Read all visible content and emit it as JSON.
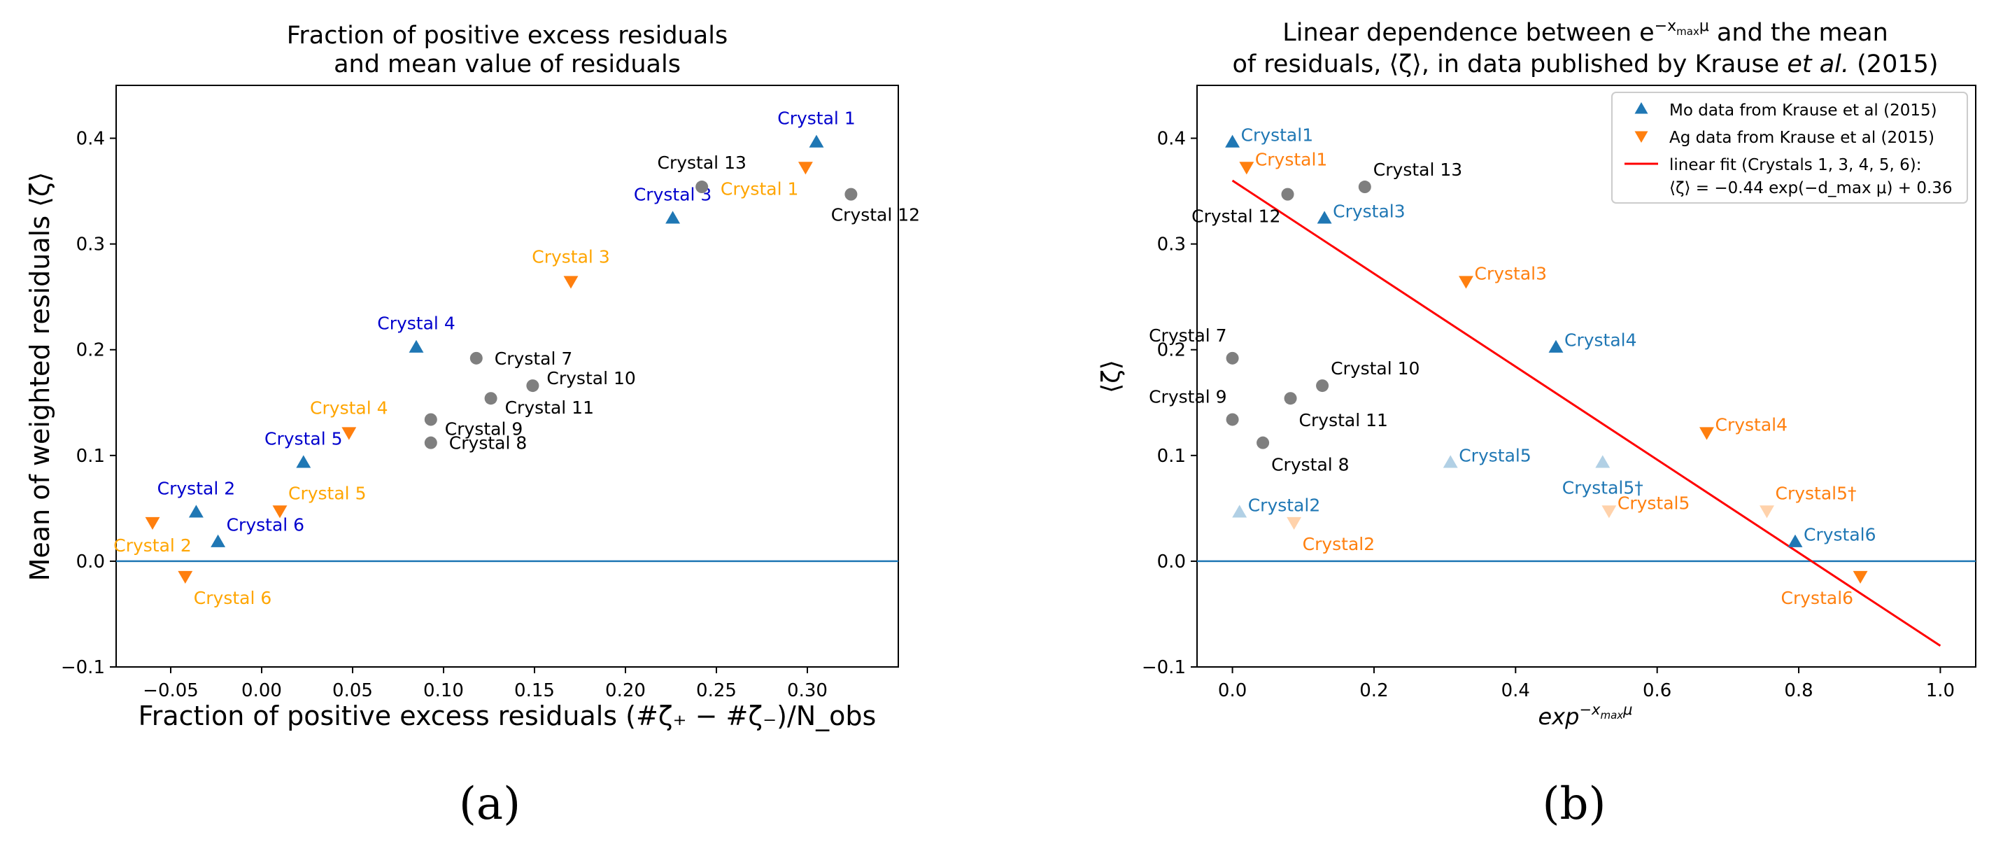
{
  "colors": {
    "mo": "#1f77b4",
    "ag": "#ff7f0e",
    "ag_label": "#ffa500",
    "mo_label_a": "#0000cd",
    "grey": "#7f7f7f",
    "fit": "#ff0000",
    "zero_line": "#1f77b4"
  },
  "chart_data": [
    {
      "type": "scatter",
      "panel_label": "(a)",
      "title_lines": [
        "Fraction of positive excess residuals",
        "and mean value of residuals"
      ],
      "xlabel": "Fraction of positive excess residuals (#ζ₊ − #ζ₋)/N_obs",
      "ylabel": "Mean of weighted residuals ⟨ζ⟩",
      "xlim": [
        -0.08,
        0.35
      ],
      "ylim": [
        -0.1,
        0.45
      ],
      "xticks": [
        -0.05,
        0.0,
        0.05,
        0.1,
        0.15,
        0.2,
        0.25,
        0.3
      ],
      "xtick_labels": [
        "−0.05",
        "0.00",
        "0.05",
        "0.10",
        "0.15",
        "0.20",
        "0.25",
        "0.30"
      ],
      "yticks": [
        -0.1,
        0.0,
        0.1,
        0.2,
        0.3,
        0.4
      ],
      "ytick_labels": [
        "−0.1",
        "0.0",
        "0.1",
        "0.2",
        "0.3",
        "0.4"
      ],
      "hline_y": 0.0,
      "points": [
        {
          "x": 0.305,
          "y": 0.396,
          "series": "mo",
          "label": "Crystal 1",
          "lpos": "above"
        },
        {
          "x": -0.036,
          "y": 0.046,
          "series": "mo",
          "label": "Crystal 2",
          "lpos": "above"
        },
        {
          "x": 0.226,
          "y": 0.324,
          "series": "mo",
          "label": "Crystal 3",
          "lpos": "above"
        },
        {
          "x": 0.085,
          "y": 0.202,
          "series": "mo",
          "label": "Crystal 4",
          "lpos": "above"
        },
        {
          "x": 0.023,
          "y": 0.093,
          "series": "mo",
          "label": "Crystal 5",
          "lpos": "above"
        },
        {
          "x": -0.024,
          "y": 0.018,
          "series": "mo",
          "label": "Crystal 6",
          "lpos": "above-right"
        },
        {
          "x": 0.299,
          "y": 0.373,
          "series": "ag",
          "label": "Crystal 1",
          "lpos": "below-left"
        },
        {
          "x": -0.06,
          "y": 0.037,
          "series": "ag",
          "label": "Crystal 2",
          "lpos": "below"
        },
        {
          "x": 0.17,
          "y": 0.265,
          "series": "ag",
          "label": "Crystal 3",
          "lpos": "above"
        },
        {
          "x": 0.048,
          "y": 0.122,
          "series": "ag",
          "label": "Crystal 4",
          "lpos": "above"
        },
        {
          "x": 0.01,
          "y": 0.048,
          "series": "ag",
          "label": "Crystal 5",
          "lpos": "above-right"
        },
        {
          "x": -0.042,
          "y": -0.014,
          "series": "ag",
          "label": "Crystal 6",
          "lpos": "below-right"
        },
        {
          "x": 0.118,
          "y": 0.192,
          "series": "grey",
          "label": "Crystal 7",
          "lpos": "right"
        },
        {
          "x": 0.093,
          "y": 0.112,
          "series": "grey",
          "label": "Crystal 8",
          "lpos": "right"
        },
        {
          "x": 0.093,
          "y": 0.134,
          "series": "grey",
          "label": "Crystal 9",
          "lpos": "right-below"
        },
        {
          "x": 0.149,
          "y": 0.166,
          "series": "grey",
          "label": "Crystal 10",
          "lpos": "right-above"
        },
        {
          "x": 0.126,
          "y": 0.154,
          "series": "grey",
          "label": "Crystal 11",
          "lpos": "right-below"
        },
        {
          "x": 0.324,
          "y": 0.347,
          "series": "grey",
          "label": "Crystal 12",
          "lpos": "below-center"
        },
        {
          "x": 0.242,
          "y": 0.354,
          "series": "grey",
          "label": "Crystal 13",
          "lpos": "above"
        }
      ]
    },
    {
      "type": "scatter",
      "panel_label": "(b)",
      "title_line1_prefix": "Linear dependence between ",
      "title_line1_e": "e",
      "title_line1_exponent": "−x",
      "title_line1_sub": "max",
      "title_line1_mu": "μ",
      "title_line1_suffix": " and the mean",
      "title_line2_prefix": "of residuals, ⟨ζ⟩, in data published by Krause ",
      "title_line2_italic": "et al.",
      "title_line2_suffix": " (2015)",
      "xlabel": "exp",
      "xlabel_exponent": "−x",
      "xlabel_sub": "max",
      "xlabel_mu": "μ",
      "ylabel": "⟨ζ⟩",
      "xlim": [
        -0.05,
        1.05
      ],
      "ylim": [
        -0.1,
        0.45
      ],
      "xticks": [
        0.0,
        0.2,
        0.4,
        0.6,
        0.8,
        1.0
      ],
      "xtick_labels": [
        "0.0",
        "0.2",
        "0.4",
        "0.6",
        "0.8",
        "1.0"
      ],
      "yticks": [
        -0.1,
        0.0,
        0.1,
        0.2,
        0.3,
        0.4
      ],
      "ytick_labels": [
        "−0.1",
        "0.0",
        "0.1",
        "0.2",
        "0.3",
        "0.4"
      ],
      "hline_y": 0.0,
      "fit": {
        "slope": -0.44,
        "intercept": 0.36,
        "x_range": [
          0.0,
          1.0
        ]
      },
      "legend": [
        {
          "series": "mo",
          "label": "Mo data from Krause et al (2015)"
        },
        {
          "series": "ag",
          "label": "Ag data from Krause et al (2015)"
        },
        {
          "series": "fit",
          "label": "linear fit (Crystals 1, 3, 4, 5, 6):",
          "label2": "⟨ζ⟩ = −0.44 exp(−d_max μ) + 0.36"
        }
      ],
      "points": [
        {
          "x": 0.0,
          "y": 0.396,
          "series": "mo",
          "label": "Crystal1",
          "lpos": "right",
          "faded": false
        },
        {
          "x": 0.01,
          "y": 0.046,
          "series": "mo",
          "label": "Crystal2",
          "lpos": "right",
          "faded": true
        },
        {
          "x": 0.13,
          "y": 0.324,
          "series": "mo",
          "label": "Crystal3",
          "lpos": "right",
          "faded": false
        },
        {
          "x": 0.457,
          "y": 0.202,
          "series": "mo",
          "label": "Crystal4",
          "lpos": "right",
          "faded": false
        },
        {
          "x": 0.308,
          "y": 0.093,
          "series": "mo",
          "label": "Crystal5",
          "lpos": "right",
          "faded": true
        },
        {
          "x": 0.523,
          "y": 0.093,
          "series": "mo",
          "label": "Crystal5†",
          "lpos": "below",
          "faded": true
        },
        {
          "x": 0.795,
          "y": 0.018,
          "series": "mo",
          "label": "Crystal6",
          "lpos": "right",
          "faded": false
        },
        {
          "x": 0.02,
          "y": 0.373,
          "series": "ag",
          "label": "Crystal1",
          "lpos": "right-up",
          "faded": false
        },
        {
          "x": 0.087,
          "y": 0.037,
          "series": "ag",
          "label": "Crystal2",
          "lpos": "below-right",
          "faded": true
        },
        {
          "x": 0.33,
          "y": 0.265,
          "series": "ag",
          "label": "Crystal3",
          "lpos": "right",
          "faded": false
        },
        {
          "x": 0.67,
          "y": 0.122,
          "series": "ag",
          "label": "Crystal4",
          "lpos": "right",
          "faded": false
        },
        {
          "x": 0.532,
          "y": 0.048,
          "series": "ag",
          "label": "Crystal5",
          "lpos": "right",
          "faded": true
        },
        {
          "x": 0.755,
          "y": 0.048,
          "series": "ag",
          "label": "Crystal5†",
          "lpos": "above-right",
          "faded": true
        },
        {
          "x": 0.887,
          "y": -0.014,
          "series": "ag",
          "label": "Crystal6",
          "lpos": "below-left",
          "faded": false
        },
        {
          "x": 0.0,
          "y": 0.192,
          "series": "grey",
          "label": "Crystal 7",
          "lpos": "above-left",
          "faded": false
        },
        {
          "x": 0.043,
          "y": 0.112,
          "series": "grey",
          "label": "Crystal 8",
          "lpos": "below-right",
          "faded": false
        },
        {
          "x": 0.0,
          "y": 0.134,
          "series": "grey",
          "label": "Crystal 9",
          "lpos": "above-left",
          "faded": false
        },
        {
          "x": 0.127,
          "y": 0.166,
          "series": "grey",
          "label": "Crystal 10",
          "lpos": "above-right",
          "faded": false
        },
        {
          "x": 0.082,
          "y": 0.154,
          "series": "grey",
          "label": "Crystal 11",
          "lpos": "below-right",
          "faded": false
        },
        {
          "x": 0.078,
          "y": 0.347,
          "series": "grey",
          "label": "Crystal 12",
          "lpos": "below-left",
          "faded": false
        },
        {
          "x": 0.187,
          "y": 0.354,
          "series": "grey",
          "label": "Crystal 13",
          "lpos": "above-right",
          "faded": false
        }
      ]
    }
  ]
}
